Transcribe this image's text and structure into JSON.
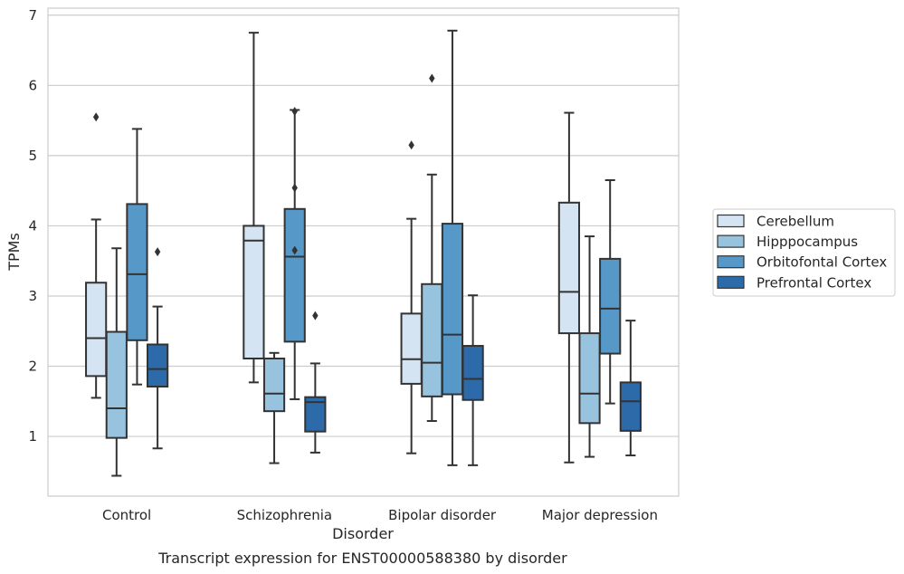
{
  "chart_data": {
    "type": "box",
    "caption": "Transcript expression for ENST00000588380 by disorder",
    "xlabel": "Disorder",
    "ylabel": "TPMs",
    "ylim": [
      0.15,
      7.1
    ],
    "yticks": [
      1,
      2,
      3,
      4,
      5,
      6,
      7
    ],
    "grid": "horizontal",
    "legend_position": "right",
    "categories": [
      "Control",
      "Schizophrenia",
      "Bipolar disorder",
      "Major depression"
    ],
    "series": [
      {
        "name": "Cerebellum",
        "color": "#d4e4f3",
        "boxes": [
          {
            "whisker_low": 1.55,
            "q1": 1.86,
            "median": 2.4,
            "q3": 3.19,
            "whisker_high": 4.09,
            "outliers": [
              5.55
            ]
          },
          {
            "whisker_low": 1.77,
            "q1": 2.11,
            "median": 3.79,
            "q3": 4.0,
            "whisker_high": 6.75,
            "outliers": []
          },
          {
            "whisker_low": 0.76,
            "q1": 1.75,
            "median": 2.1,
            "q3": 2.75,
            "whisker_high": 4.1,
            "outliers": [
              5.15
            ]
          },
          {
            "whisker_low": 0.63,
            "q1": 2.47,
            "median": 3.06,
            "q3": 4.33,
            "whisker_high": 5.61,
            "outliers": []
          }
        ]
      },
      {
        "name": "Hipppocampus",
        "color": "#98c3de",
        "boxes": [
          {
            "whisker_low": 0.44,
            "q1": 0.98,
            "median": 1.4,
            "q3": 2.49,
            "whisker_high": 3.68,
            "outliers": []
          },
          {
            "whisker_low": 0.62,
            "q1": 1.36,
            "median": 1.61,
            "q3": 2.11,
            "whisker_high": 2.19,
            "outliers": []
          },
          {
            "whisker_low": 1.22,
            "q1": 1.57,
            "median": 2.05,
            "q3": 3.17,
            "whisker_high": 4.73,
            "outliers": [
              6.1
            ]
          },
          {
            "whisker_low": 0.71,
            "q1": 1.19,
            "median": 1.61,
            "q3": 2.47,
            "whisker_high": 3.85,
            "outliers": []
          }
        ]
      },
      {
        "name": "Orbitofontal Cortex",
        "color": "#5699c9",
        "boxes": [
          {
            "whisker_low": 1.74,
            "q1": 2.37,
            "median": 3.31,
            "q3": 4.31,
            "whisker_high": 5.38,
            "outliers": []
          },
          {
            "whisker_low": 1.53,
            "q1": 2.35,
            "median": 3.56,
            "q3": 4.24,
            "whisker_high": 5.65,
            "outliers": [
              5.63,
              4.54,
              3.65
            ]
          },
          {
            "whisker_low": 0.59,
            "q1": 1.6,
            "median": 2.45,
            "q3": 4.03,
            "whisker_high": 6.78,
            "outliers": []
          },
          {
            "whisker_low": 1.47,
            "q1": 2.18,
            "median": 2.82,
            "q3": 3.53,
            "whisker_high": 4.65,
            "outliers": []
          }
        ]
      },
      {
        "name": "Prefrontal Cortex",
        "color": "#2c6aa9",
        "boxes": [
          {
            "whisker_low": 0.83,
            "q1": 1.71,
            "median": 1.96,
            "q3": 2.31,
            "whisker_high": 2.85,
            "outliers": [
              3.63
            ]
          },
          {
            "whisker_low": 0.77,
            "q1": 1.07,
            "median": 1.49,
            "q3": 1.56,
            "whisker_high": 2.04,
            "outliers": [
              2.72
            ]
          },
          {
            "whisker_low": 0.59,
            "q1": 1.52,
            "median": 1.82,
            "q3": 2.29,
            "whisker_high": 3.01,
            "outliers": []
          },
          {
            "whisker_low": 0.73,
            "q1": 1.08,
            "median": 1.5,
            "q3": 1.77,
            "whisker_high": 2.65,
            "outliers": []
          }
        ]
      }
    ]
  }
}
